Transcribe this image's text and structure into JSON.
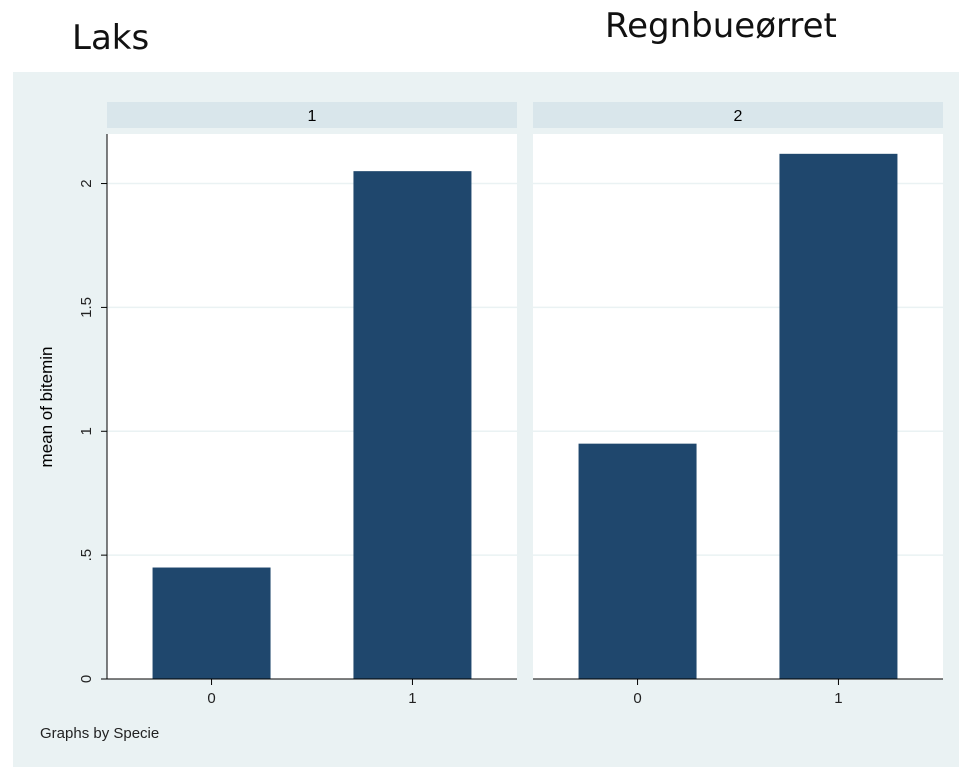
{
  "overlay_titles": {
    "left": "Laks",
    "right": "Regnbueørret"
  },
  "colors": {
    "bar": "#1F476D",
    "plot_region": "#EAF2F3",
    "panel_header": "#D9E6EB",
    "grid": "#EAF2F3",
    "axis": "#000000"
  },
  "chart_data": {
    "type": "bar",
    "ylabel": "mean of bitemin",
    "ylim": [
      0,
      2.2
    ],
    "yticks": [
      0,
      0.5,
      1,
      1.5,
      2
    ],
    "ytick_labels": [
      "0",
      ".5",
      "1",
      "1.5",
      "2"
    ],
    "grid": true,
    "note": "Graphs by Specie",
    "panels": [
      {
        "label": "1",
        "categories": [
          "0",
          "1"
        ],
        "values": [
          0.45,
          2.05
        ]
      },
      {
        "label": "2",
        "categories": [
          "0",
          "1"
        ],
        "values": [
          0.95,
          2.12
        ]
      }
    ]
  }
}
